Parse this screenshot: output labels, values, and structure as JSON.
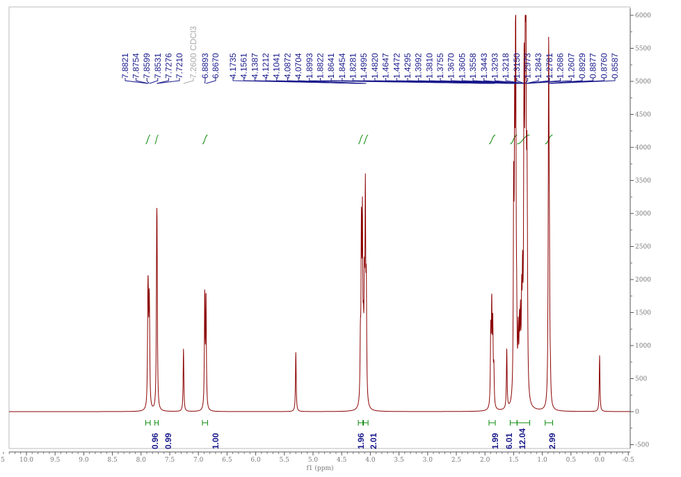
{
  "chart_data": {
    "type": "line",
    "title": "",
    "xlabel": "f1 (ppm)",
    "ylabel": "",
    "xlim": [
      10.5,
      -0.5
    ],
    "ylim": [
      -500,
      6000
    ],
    "x_ticks": [
      "10.5",
      "10.0",
      "9.5",
      "9.0",
      "8.5",
      "8.0",
      "7.5",
      "7.0",
      "6.5",
      "6.0",
      "5.5",
      "5.0",
      "4.5",
      "4.0",
      "3.5",
      "3.0",
      "2.5",
      "2.0",
      "1.5",
      "1.0",
      "0.5",
      "0.0",
      "-0.5"
    ],
    "y_ticks": [
      -500,
      0,
      500,
      1000,
      1500,
      2000,
      2500,
      3000,
      3500,
      4000,
      4500,
      5000,
      5500,
      6000
    ],
    "grid": false,
    "colors": {
      "spectrum": "#8b0000",
      "peak_labels": "#1a1a8c",
      "integrals": "#0a8a0a",
      "solvent_label": "#aaaaaa"
    },
    "peak_labels": [
      "7.8821",
      "7.8754",
      "7.8599",
      "7.8531",
      "7.7276",
      "7.7210",
      "7.2600 CDCl3",
      "6.8893",
      "6.8670",
      "4.1735",
      "4.1561",
      "4.1387",
      "4.1212",
      "4.1041",
      "4.0872",
      "4.0704",
      "1.8993",
      "1.8822",
      "1.8641",
      "1.8454",
      "1.8281",
      "1.4995",
      "1.4820",
      "1.4647",
      "1.4472",
      "1.4295",
      "1.3992",
      "1.3810",
      "1.3755",
      "1.3670",
      "1.3605",
      "1.3558",
      "1.3443",
      "1.3293",
      "1.3218",
      "1.3150",
      "1.2973",
      "1.2843",
      "1.2781",
      "1.2686",
      "1.2607",
      "0.8929",
      "0.8877",
      "0.8760",
      "0.8587"
    ],
    "integrals": [
      {
        "from": 7.92,
        "to": 7.84,
        "value": "0.96"
      },
      {
        "from": 7.76,
        "to": 7.7,
        "value": "0.99"
      },
      {
        "from": 6.93,
        "to": 6.84,
        "value": "1.00"
      },
      {
        "from": 4.21,
        "to": 4.13,
        "value": "1.96"
      },
      {
        "from": 4.12,
        "to": 4.04,
        "value": "2.01"
      },
      {
        "from": 1.93,
        "to": 1.82,
        "value": "1.99"
      },
      {
        "from": 1.56,
        "to": 1.44,
        "value": "6.01"
      },
      {
        "from": 1.44,
        "to": 1.22,
        "value": "12.04"
      },
      {
        "from": 0.95,
        "to": 0.82,
        "value": "2.99"
      }
    ],
    "peaks": [
      [
        7.8821,
        1100
      ],
      [
        7.8754,
        1150
      ],
      [
        7.8599,
        1000
      ],
      [
        7.8531,
        950
      ],
      [
        7.7276,
        1900
      ],
      [
        7.721,
        1800
      ],
      [
        7.26,
        950
      ],
      [
        6.8893,
        1720
      ],
      [
        6.867,
        1680
      ],
      [
        5.3,
        900
      ],
      [
        4.1735,
        850
      ],
      [
        4.1561,
        2500
      ],
      [
        4.1387,
        2600
      ],
      [
        4.1212,
        800
      ],
      [
        4.1041,
        1550
      ],
      [
        4.0872,
        3000
      ],
      [
        4.0704,
        1600
      ],
      [
        1.8993,
        1100
      ],
      [
        1.8822,
        1450
      ],
      [
        1.8641,
        1200
      ],
      [
        1.8454,
        550
      ],
      [
        1.62,
        900
      ],
      [
        1.4995,
        2900
      ],
      [
        1.482,
        3700
      ],
      [
        1.4647,
        6000
      ],
      [
        1.4472,
        900
      ],
      [
        1.42,
        900
      ],
      [
        1.3992,
        1000
      ],
      [
        1.381,
        1100
      ],
      [
        1.36,
        1300
      ],
      [
        1.3443,
        1500
      ],
      [
        1.3218,
        2200
      ],
      [
        1.315,
        3200
      ],
      [
        1.2973,
        4900
      ],
      [
        1.2843,
        4300
      ],
      [
        1.2686,
        2500
      ],
      [
        1.2607,
        1200
      ],
      [
        0.8929,
        1800
      ],
      [
        0.8877,
        3950
      ],
      [
        0.876,
        1750
      ],
      [
        0.8587,
        300
      ],
      [
        0.0,
        850
      ]
    ]
  }
}
